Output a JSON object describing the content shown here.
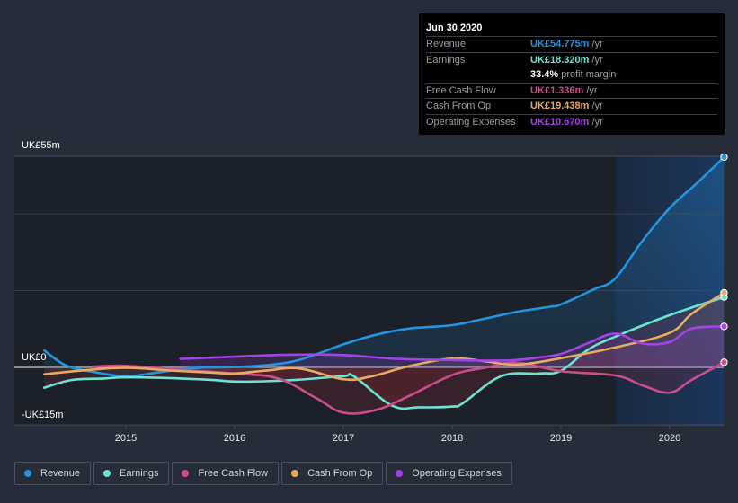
{
  "tooltip": {
    "date": "Jun 30 2020",
    "rows": [
      {
        "label": "Revenue",
        "value": "UK£54.775m",
        "unit": "/yr",
        "color": "#2394df"
      },
      {
        "label": "Earnings",
        "value": "UK£18.320m",
        "unit": "/yr",
        "color": "#6ce3d1"
      },
      {
        "label": "",
        "value": "33.4%",
        "unit": "profit margin",
        "color": "#ffffff"
      },
      {
        "label": "Free Cash Flow",
        "value": "UK£1.336m",
        "unit": "/yr",
        "color": "#cb4c8b"
      },
      {
        "label": "Cash From Op",
        "value": "UK£19.438m",
        "unit": "/yr",
        "color": "#e6aa62"
      },
      {
        "label": "Operating Expenses",
        "value": "UK£10.670m",
        "unit": "/yr",
        "color": "#a442e8"
      }
    ]
  },
  "legend": [
    {
      "label": "Revenue",
      "color": "#2394df"
    },
    {
      "label": "Earnings",
      "color": "#6ce3d1"
    },
    {
      "label": "Free Cash Flow",
      "color": "#cb4c8b"
    },
    {
      "label": "Cash From Op",
      "color": "#e6aa62"
    },
    {
      "label": "Operating Expenses",
      "color": "#a442e8"
    }
  ],
  "chart_data": {
    "type": "line",
    "title": "",
    "xlabel": "",
    "ylabel": "",
    "ylim": [
      -15,
      55
    ],
    "xlim": [
      2014.2,
      2020.5
    ],
    "y_tick_labels": [
      {
        "value": 55,
        "label": "UK£55m"
      },
      {
        "value": 0,
        "label": "UK£0"
      },
      {
        "value": -15,
        "label": "-UK£15m"
      }
    ],
    "gridlines": [
      55,
      40,
      20,
      0,
      -15
    ],
    "x_ticks": [
      2015,
      2016,
      2017,
      2018,
      2019,
      2020
    ],
    "x_tick_labels": [
      "2015",
      "2016",
      "2017",
      "2018",
      "2019",
      "2020"
    ],
    "highlight_range": [
      2019.5,
      2020.5
    ],
    "grid": true,
    "legend_position": "bottom-left",
    "series": [
      {
        "name": "Revenue",
        "color": "#2394df",
        "points": [
          [
            2014.25,
            4.4
          ],
          [
            2014.45,
            0.5
          ],
          [
            2014.7,
            -1.2
          ],
          [
            2015.0,
            -2.3
          ],
          [
            2015.3,
            -1.3
          ],
          [
            2015.6,
            -0.2
          ],
          [
            2016.0,
            0.1
          ],
          [
            2016.3,
            0.6
          ],
          [
            2016.6,
            2.0
          ],
          [
            2017.0,
            6.0
          ],
          [
            2017.3,
            8.5
          ],
          [
            2017.6,
            10.1
          ],
          [
            2018.0,
            11.0
          ],
          [
            2018.3,
            12.7
          ],
          [
            2018.6,
            14.5
          ],
          [
            2018.9,
            15.8
          ],
          [
            2019.0,
            16.4
          ],
          [
            2019.3,
            20.3
          ],
          [
            2019.5,
            23.2
          ],
          [
            2019.75,
            33.0
          ],
          [
            2020.0,
            41.5
          ],
          [
            2020.25,
            48.0
          ],
          [
            2020.5,
            54.775
          ]
        ]
      },
      {
        "name": "Earnings",
        "color": "#6ce3d1",
        "points": [
          [
            2014.25,
            -5.3
          ],
          [
            2014.5,
            -3.3
          ],
          [
            2014.8,
            -2.9
          ],
          [
            2015.0,
            -2.6
          ],
          [
            2015.4,
            -2.8
          ],
          [
            2015.8,
            -3.3
          ],
          [
            2016.0,
            -3.7
          ],
          [
            2016.3,
            -3.6
          ],
          [
            2016.6,
            -3.2
          ],
          [
            2017.0,
            -2.3
          ],
          [
            2017.1,
            -2.4
          ],
          [
            2017.45,
            -10.0
          ],
          [
            2017.7,
            -10.4
          ],
          [
            2018.0,
            -10.2
          ],
          [
            2018.1,
            -9.3
          ],
          [
            2018.45,
            -2.3
          ],
          [
            2018.8,
            -1.6
          ],
          [
            2019.0,
            -0.9
          ],
          [
            2019.25,
            4.6
          ],
          [
            2019.5,
            8.0
          ],
          [
            2020.0,
            13.6
          ],
          [
            2020.5,
            18.32
          ]
        ]
      },
      {
        "name": "Free Cash Flow",
        "color": "#cb4c8b",
        "points": [
          [
            2014.7,
            0.2
          ],
          [
            2015.0,
            0.4
          ],
          [
            2015.5,
            -0.6
          ],
          [
            2016.0,
            -1.6
          ],
          [
            2016.4,
            -2.9
          ],
          [
            2016.75,
            -8.0
          ],
          [
            2017.0,
            -11.8
          ],
          [
            2017.3,
            -11.1
          ],
          [
            2017.6,
            -7.5
          ],
          [
            2018.0,
            -2.0
          ],
          [
            2018.3,
            -0.1
          ],
          [
            2018.6,
            1.2
          ],
          [
            2019.0,
            -1.0
          ],
          [
            2019.5,
            -2.1
          ],
          [
            2019.75,
            -4.7
          ],
          [
            2020.0,
            -6.6
          ],
          [
            2020.2,
            -3.3
          ],
          [
            2020.5,
            1.336
          ]
        ]
      },
      {
        "name": "Cash From Op",
        "color": "#e6aa62",
        "points": [
          [
            2014.25,
            -1.8
          ],
          [
            2014.6,
            -0.8
          ],
          [
            2015.0,
            -0.1
          ],
          [
            2015.4,
            -0.8
          ],
          [
            2015.8,
            -1.4
          ],
          [
            2016.0,
            -1.6
          ],
          [
            2016.3,
            -0.8
          ],
          [
            2016.6,
            -0.3
          ],
          [
            2017.0,
            -3.1
          ],
          [
            2017.25,
            -2.4
          ],
          [
            2017.6,
            0.3
          ],
          [
            2018.0,
            2.3
          ],
          [
            2018.3,
            1.6
          ],
          [
            2018.6,
            0.7
          ],
          [
            2019.0,
            2.4
          ],
          [
            2019.5,
            5.2
          ],
          [
            2020.0,
            9.0
          ],
          [
            2020.2,
            13.9
          ],
          [
            2020.5,
            19.438
          ]
        ]
      },
      {
        "name": "Operating Expenses",
        "color": "#a442e8",
        "points": [
          [
            2015.5,
            2.2
          ],
          [
            2016.0,
            2.8
          ],
          [
            2016.5,
            3.3
          ],
          [
            2017.0,
            3.2
          ],
          [
            2017.5,
            2.2
          ],
          [
            2018.0,
            1.9
          ],
          [
            2018.5,
            1.8
          ],
          [
            2018.8,
            2.6
          ],
          [
            2019.0,
            3.5
          ],
          [
            2019.25,
            6.3
          ],
          [
            2019.5,
            8.8
          ],
          [
            2019.75,
            6.2
          ],
          [
            2020.0,
            6.6
          ],
          [
            2020.2,
            10.1
          ],
          [
            2020.5,
            10.67
          ]
        ]
      }
    ]
  }
}
